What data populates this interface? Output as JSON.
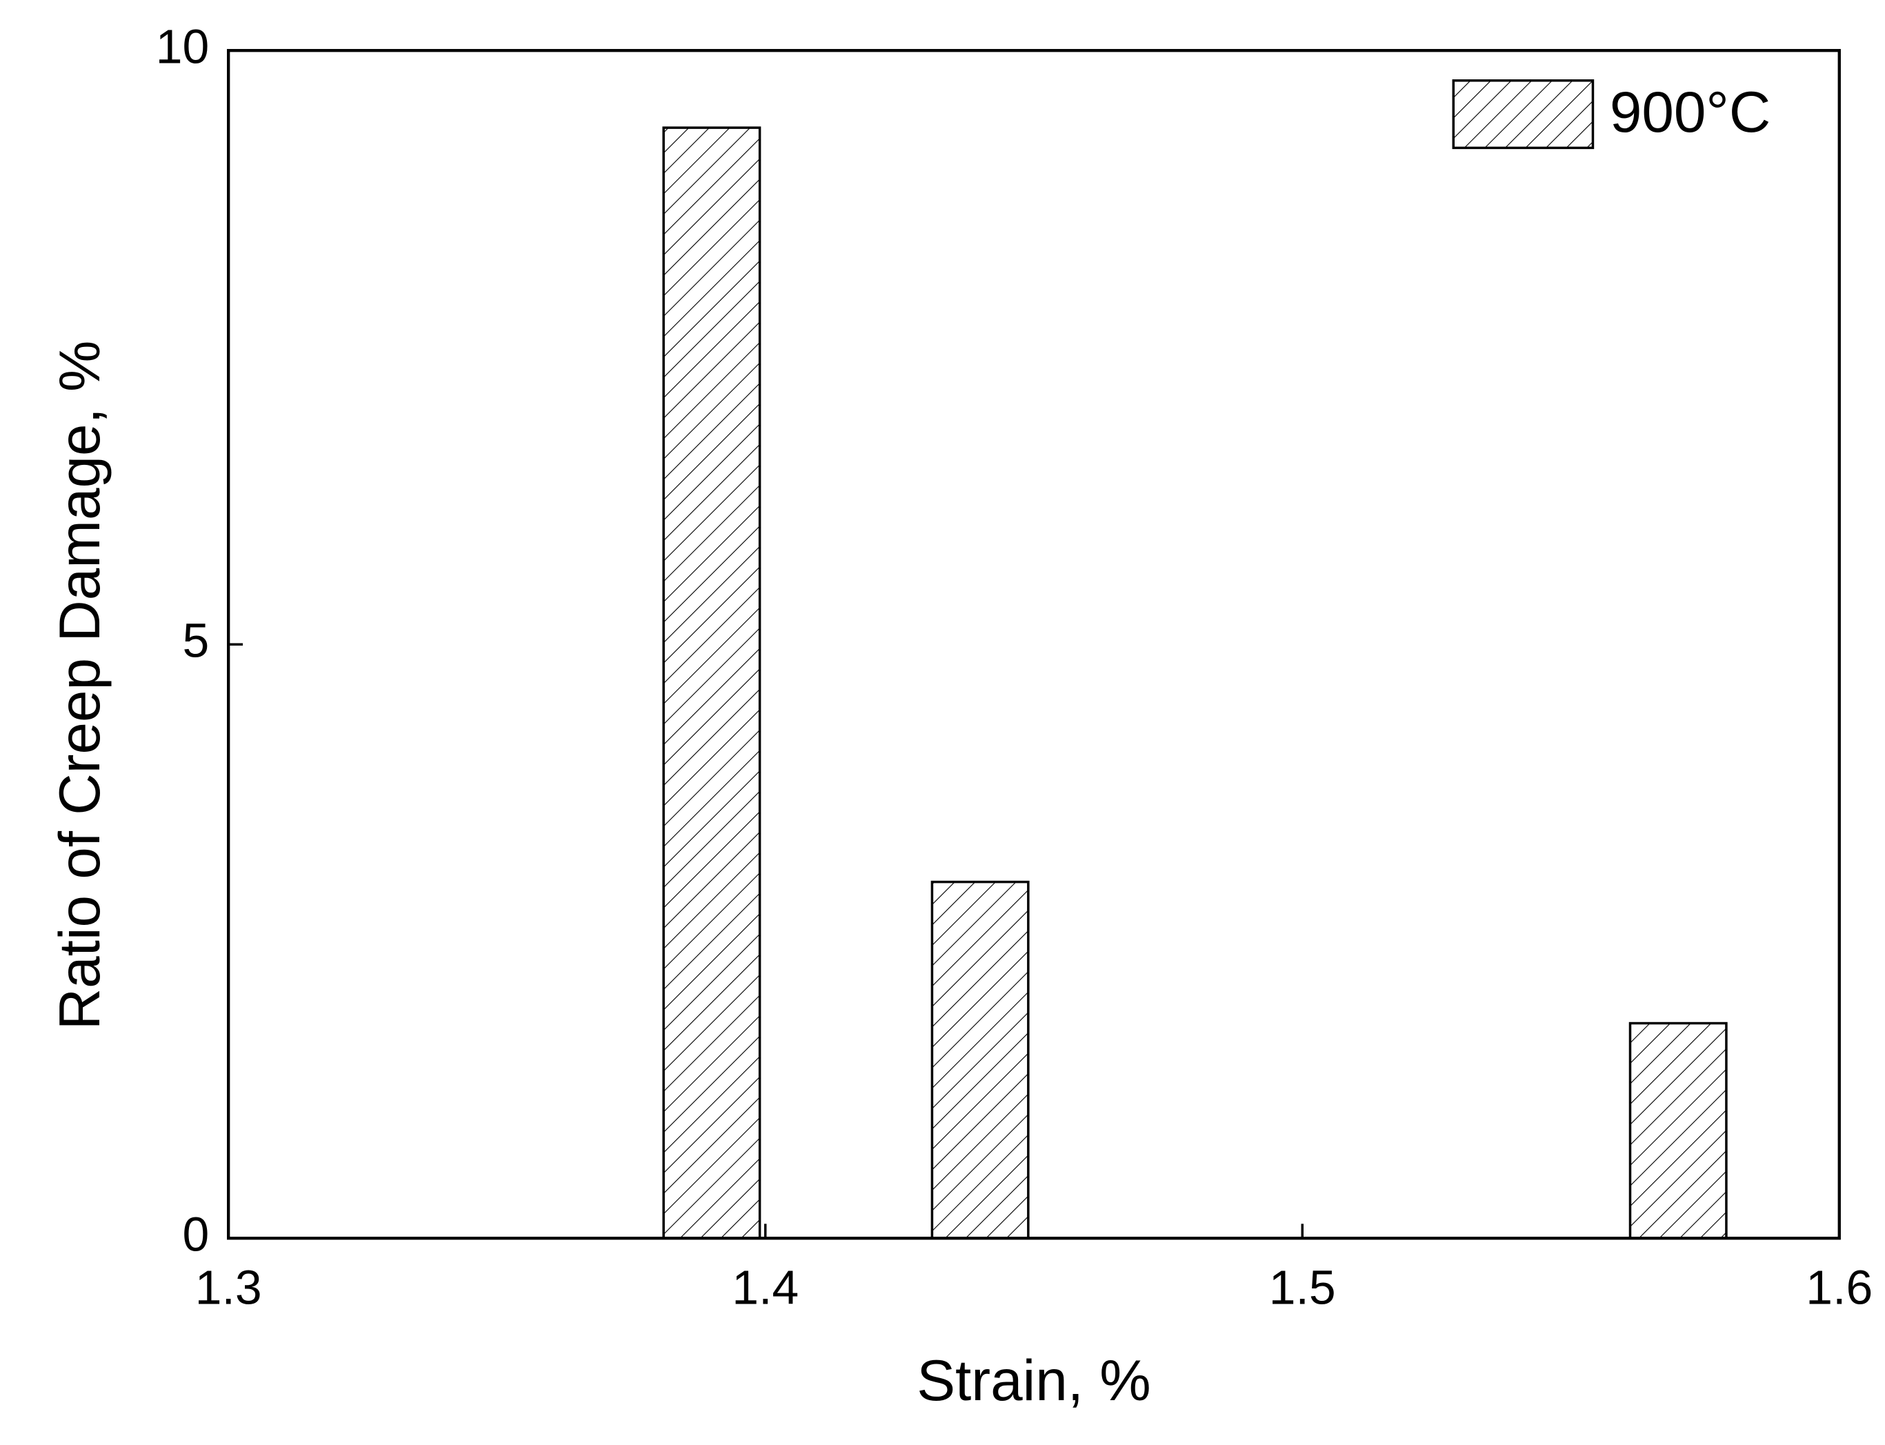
{
  "chart_data": {
    "type": "bar",
    "x_label": "Strain, %",
    "y_label": "Ratio of Creep Damage, %",
    "x": [
      1.39,
      1.44,
      1.57
    ],
    "series": [
      {
        "name": "900°C",
        "color": "#000000",
        "values": [
          9.35,
          3.0,
          1.81
        ]
      }
    ],
    "xlim": [
      1.3,
      1.6
    ],
    "xticks": [
      1.3,
      1.4,
      1.5,
      1.6
    ],
    "ylim": [
      0,
      10
    ],
    "yticks": [
      0,
      5,
      10
    ],
    "legend": "upper right",
    "grid": false,
    "hatch": "diagonal"
  }
}
